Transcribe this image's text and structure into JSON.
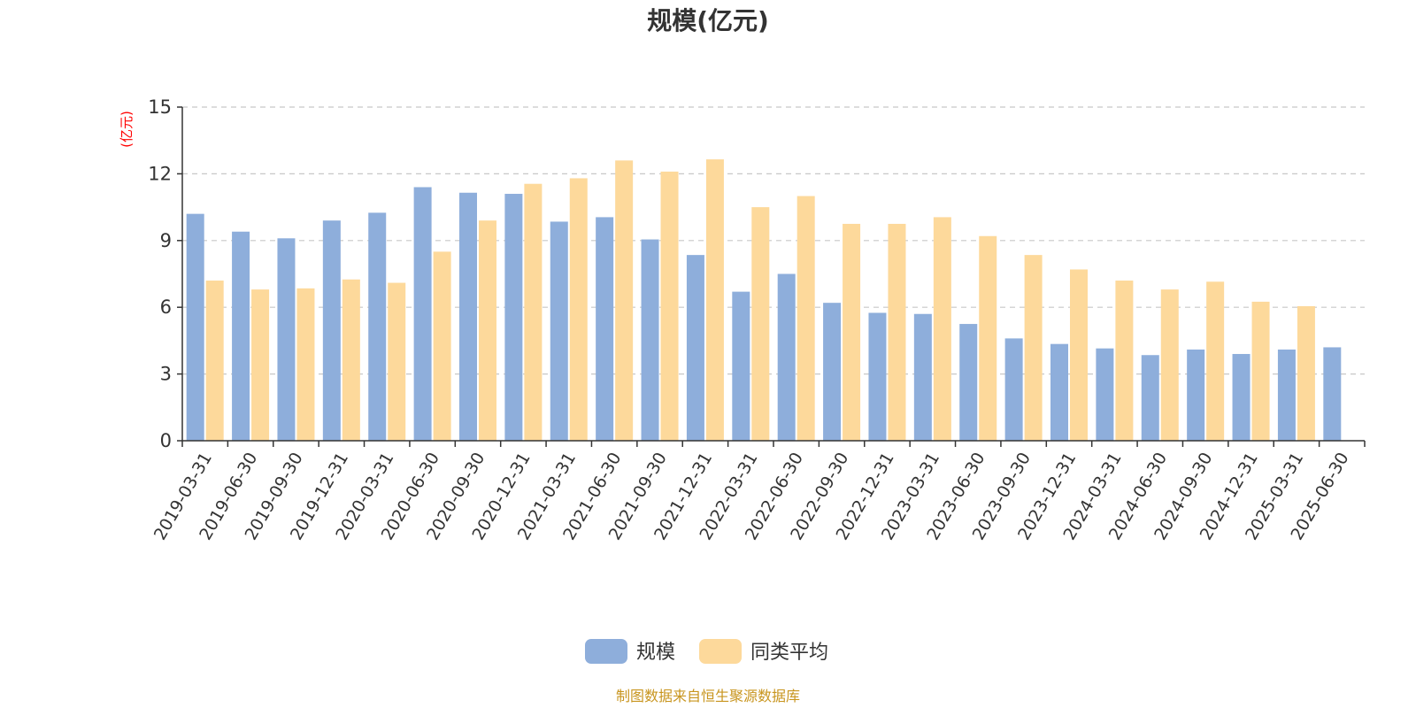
{
  "chart_data": {
    "type": "bar",
    "title": "规模(亿元)",
    "ylabel": "(亿元)",
    "ylim": [
      0,
      15
    ],
    "yticks": [
      0,
      3,
      6,
      9,
      12,
      15
    ],
    "grid": "horizontal dashed",
    "legend_position": "bottom-center",
    "categories": [
      "2019-03-31",
      "2019-06-30",
      "2019-09-30",
      "2019-12-31",
      "2020-03-31",
      "2020-06-30",
      "2020-09-30",
      "2020-12-31",
      "2021-03-31",
      "2021-06-30",
      "2021-09-30",
      "2021-12-31",
      "2022-03-31",
      "2022-06-30",
      "2022-09-30",
      "2022-12-31",
      "2023-03-31",
      "2023-06-30",
      "2023-09-30",
      "2023-12-31",
      "2024-03-31",
      "2024-06-30",
      "2024-09-30",
      "2024-12-31",
      "2025-03-31",
      "2025-06-30"
    ],
    "series": [
      {
        "name": "规模",
        "color": "#8eaedb",
        "values": [
          10.2,
          9.4,
          9.1,
          9.9,
          10.25,
          11.4,
          11.15,
          11.1,
          9.85,
          10.05,
          9.05,
          8.35,
          6.7,
          7.5,
          6.2,
          5.75,
          5.7,
          5.25,
          4.6,
          4.35,
          4.15,
          3.85,
          4.1,
          3.9,
          4.1,
          4.2
        ]
      },
      {
        "name": "同类平均",
        "color": "#fdd99b",
        "values": [
          7.2,
          6.8,
          6.85,
          7.25,
          7.1,
          8.5,
          9.9,
          11.55,
          11.8,
          12.6,
          12.1,
          12.65,
          10.5,
          11.0,
          9.75,
          9.75,
          10.05,
          9.2,
          8.35,
          7.7,
          7.2,
          6.8,
          7.15,
          6.25,
          6.05,
          null
        ]
      }
    ]
  },
  "footer": {
    "source": "制图数据来自恒生聚源数据库"
  }
}
